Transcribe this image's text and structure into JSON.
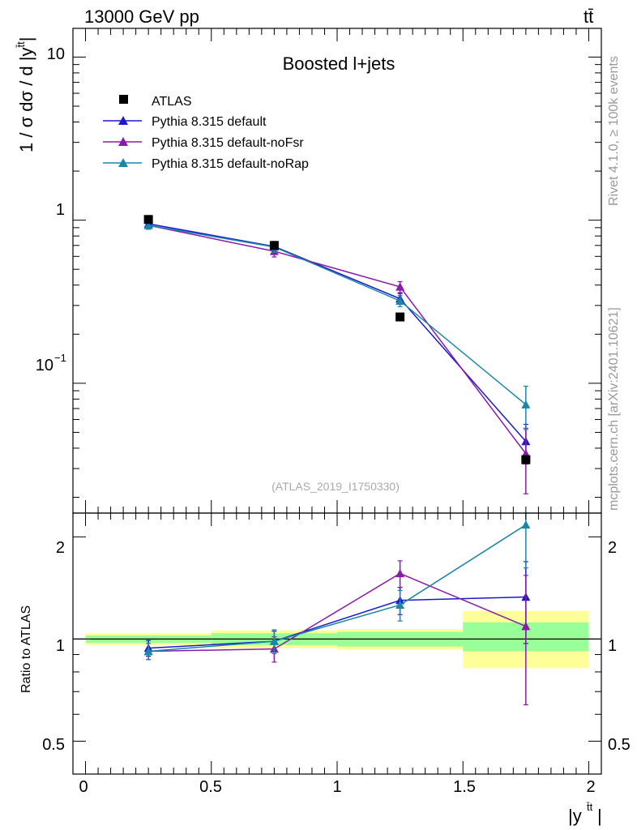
{
  "header": {
    "left": "13000 GeV pp",
    "right": "tt̄"
  },
  "side": {
    "top": "Rivet 4.1.0, ≥ 100k events",
    "bottom": "mcplots.cern.ch [arXiv:2401.10621]"
  },
  "main": {
    "title": "Boosted l+jets",
    "ylabel": "1 / σ dσ / d |y",
    "ylabel_sup": "t̄t",
    "ylabel_tail": "|",
    "watermark": "(ATLAS_2019_I1750330)",
    "ytick_labels": [
      "10",
      "1"
    ],
    "ytick_minor_label": "10",
    "ytick_minor_exp": "−1"
  },
  "ratio": {
    "ylabel": "Ratio to ATLAS",
    "ytick_labels": [
      "2",
      "1",
      "0.5"
    ]
  },
  "xaxis": {
    "tick_labels": [
      "0",
      "0.5",
      "1",
      "1.5",
      "2"
    ],
    "label": "|y",
    "label_sup": "t̄t",
    "label_tail": "|"
  },
  "colors": {
    "data": "#000000",
    "default": "#1a1acc",
    "noFsr": "#8a1aa8",
    "noRap": "#1a86a8",
    "band_inner": "#99ff99",
    "band_outer": "#ffff99"
  },
  "chart_data": {
    "type": "line",
    "xlim": [
      -0.05,
      2.05
    ],
    "main_ylim": [
      0.016,
      15
    ],
    "main_yscale": "log",
    "ratio_ylim": [
      0.4,
      2.35
    ],
    "ratio_yscale": "log",
    "x": [
      0.25,
      0.75,
      1.25,
      1.75
    ],
    "bins": [
      [
        0,
        0.5
      ],
      [
        0.5,
        1.0
      ],
      [
        1.0,
        1.5
      ],
      [
        1.5,
        2.0
      ]
    ],
    "data": {
      "name": "ATLAS",
      "values": [
        1.01,
        0.7,
        0.255,
        0.034
      ],
      "band_inner": [
        [
          0.975,
          1.025
        ],
        [
          0.96,
          1.04
        ],
        [
          0.95,
          1.05
        ],
        [
          0.92,
          1.12
        ]
      ],
      "band_outer": [
        [
          0.96,
          1.04
        ],
        [
          0.94,
          1.06
        ],
        [
          0.93,
          1.07
        ],
        [
          0.82,
          1.21
        ]
      ]
    },
    "series": [
      {
        "name": "Pythia 8.315 default",
        "color_key": "default",
        "values": [
          0.95,
          0.69,
          0.33,
          0.044
        ],
        "errors": [
          0.05,
          0.05,
          0.025,
          0.012
        ],
        "ratio": [
          0.94,
          0.985,
          1.3,
          1.33
        ],
        "ratio_err": [
          0.05,
          0.07,
          0.12,
          0.36
        ]
      },
      {
        "name": "Pythia 8.315 default-noFsr",
        "color_key": "noFsr",
        "values": [
          0.93,
          0.645,
          0.39,
          0.037
        ],
        "errors": [
          0.05,
          0.05,
          0.03,
          0.016
        ],
        "ratio": [
          0.92,
          0.935,
          1.56,
          1.09
        ],
        "ratio_err": [
          0.05,
          0.08,
          0.14,
          0.45
        ]
      },
      {
        "name": "Pythia 8.315 default-noRap",
        "color_key": "noRap",
        "values": [
          0.93,
          0.685,
          0.32,
          0.074
        ],
        "errors": [
          0.05,
          0.05,
          0.025,
          0.022
        ],
        "ratio": [
          0.92,
          0.985,
          1.26,
          2.17
        ],
        "ratio_err": [
          0.05,
          0.08,
          0.13,
          0.55
        ]
      }
    ]
  }
}
